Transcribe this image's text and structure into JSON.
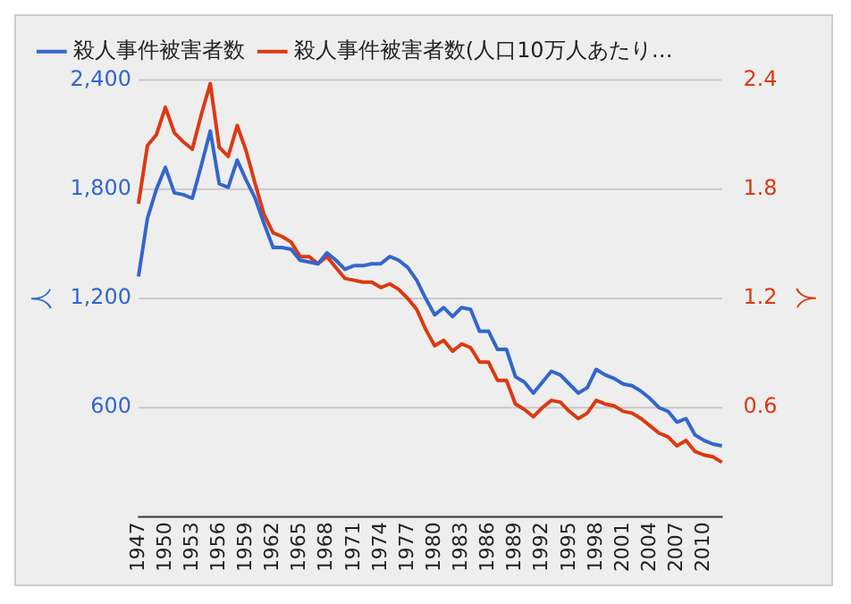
{
  "chart_data": {
    "type": "line",
    "categories": [
      "1947",
      null,
      null,
      "1950",
      null,
      null,
      "1953",
      null,
      null,
      "1956",
      null,
      null,
      "1959",
      null,
      null,
      "1962",
      null,
      null,
      "1965",
      null,
      null,
      "1968",
      null,
      null,
      "1971",
      null,
      null,
      "1974",
      null,
      null,
      "1977",
      null,
      null,
      "1980",
      null,
      null,
      "1983",
      null,
      null,
      "1986",
      null,
      null,
      "1989",
      null,
      null,
      "1992",
      null,
      null,
      "1995",
      null,
      null,
      "1998",
      null,
      null,
      "2001",
      null,
      null,
      "2004",
      null,
      null,
      "2007",
      null,
      null,
      "2010",
      null,
      null
    ],
    "series": [
      {
        "name": "殺人事件被害者数",
        "color": "#3366cc",
        "values": [
          1320,
          1640,
          1800,
          1920,
          1780,
          1770,
          1750,
          1930,
          2120,
          1830,
          1810,
          1960,
          1850,
          1750,
          1610,
          1480,
          1480,
          1470,
          1410,
          1400,
          1390,
          1450,
          1410,
          1360,
          1380,
          1380,
          1390,
          1390,
          1430,
          1410,
          1370,
          1300,
          1200,
          1110,
          1150,
          1100,
          1150,
          1140,
          1020,
          1020,
          920,
          920,
          770,
          740,
          680,
          740,
          800,
          780,
          730,
          680,
          710,
          810,
          780,
          760,
          730,
          720,
          690,
          650,
          600,
          580,
          520,
          540,
          450,
          420,
          400,
          390
        ]
      },
      {
        "name": "殺人事件被害者数(人口10万人あたり…",
        "color": "#dc3912",
        "axis": "y2",
        "values": [
          1.72,
          2.04,
          2.1,
          2.25,
          2.11,
          2.06,
          2.02,
          2.21,
          2.38,
          2.03,
          1.98,
          2.15,
          2.01,
          1.83,
          1.66,
          1.56,
          1.54,
          1.51,
          1.43,
          1.43,
          1.39,
          1.43,
          1.37,
          1.31,
          1.3,
          1.29,
          1.29,
          1.26,
          1.28,
          1.25,
          1.2,
          1.14,
          1.03,
          0.94,
          0.97,
          0.91,
          0.95,
          0.93,
          0.85,
          0.85,
          0.75,
          0.75,
          0.62,
          0.59,
          0.55,
          0.6,
          0.64,
          0.63,
          0.58,
          0.54,
          0.57,
          0.64,
          0.62,
          0.61,
          0.58,
          0.57,
          0.54,
          0.5,
          0.46,
          0.44,
          0.39,
          0.42,
          0.36,
          0.34,
          0.33,
          0.3
        ]
      }
    ],
    "ylabel": "人",
    "y2label": "人",
    "ylim": [
      0,
      2400
    ],
    "yticks": [
      {
        "value": 600,
        "label": "600"
      },
      {
        "value": 1200,
        "label": "1,200"
      },
      {
        "value": 1800,
        "label": "1,800"
      },
      {
        "value": 2400,
        "label": "2,400"
      }
    ],
    "y2lim": [
      0,
      2.4
    ],
    "y2ticks": [
      0.6,
      1.2,
      1.8,
      2.4
    ],
    "grid": "y",
    "legend": "top",
    "marker": "none",
    "line_style": "solid"
  }
}
